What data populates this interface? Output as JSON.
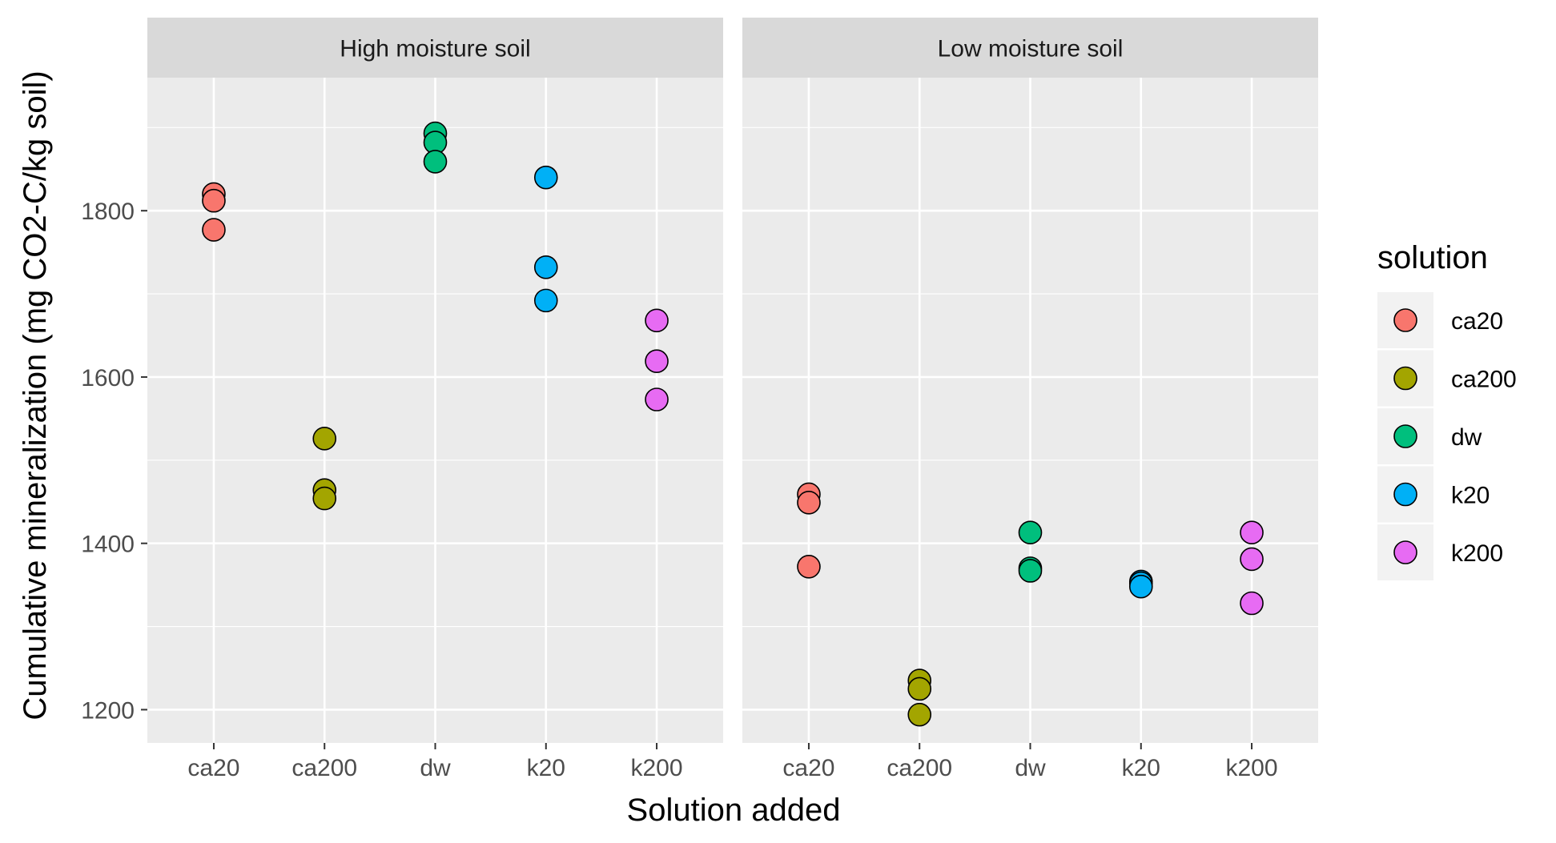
{
  "chart_data": {
    "type": "scatter",
    "facets": [
      "High moisture soil",
      "Low moisture soil"
    ],
    "categories": [
      "ca20",
      "ca200",
      "dw",
      "k20",
      "k200"
    ],
    "xlabel": "Solution added",
    "ylabel": "Cumulative mineralization (mg CO2-C/kg soil)",
    "ylim": [
      1160,
      1960
    ],
    "y_ticks": [
      1200,
      1400,
      1600,
      1800
    ],
    "grid": true,
    "legend": {
      "title": "solution",
      "position": "right",
      "entries": [
        "ca20",
        "ca200",
        "dw",
        "k20",
        "k200"
      ]
    },
    "colors": {
      "ca20": "#F8766D",
      "ca200": "#A3A500",
      "dw": "#00BF7D",
      "k20": "#00B0F6",
      "k200": "#E76BF3"
    },
    "series": [
      {
        "facet": "High moisture soil",
        "name": "ca20",
        "values": [
          1820,
          1812,
          1777
        ]
      },
      {
        "facet": "High moisture soil",
        "name": "ca200",
        "values": [
          1526,
          1464,
          1454
        ]
      },
      {
        "facet": "High moisture soil",
        "name": "dw",
        "values": [
          1893,
          1882,
          1859
        ]
      },
      {
        "facet": "High moisture soil",
        "name": "k20",
        "values": [
          1840,
          1732,
          1692
        ]
      },
      {
        "facet": "High moisture soil",
        "name": "k200",
        "values": [
          1668,
          1619,
          1573
        ]
      },
      {
        "facet": "Low moisture soil",
        "name": "ca20",
        "values": [
          1459,
          1449,
          1372
        ]
      },
      {
        "facet": "Low moisture soil",
        "name": "ca200",
        "values": [
          1235,
          1225,
          1194
        ]
      },
      {
        "facet": "Low moisture soil",
        "name": "dw",
        "values": [
          1413,
          1370,
          1367
        ]
      },
      {
        "facet": "Low moisture soil",
        "name": "k20",
        "values": [
          1354,
          1352,
          1348
        ]
      },
      {
        "facet": "Low moisture soil",
        "name": "k200",
        "values": [
          1413,
          1381,
          1328
        ]
      }
    ]
  }
}
